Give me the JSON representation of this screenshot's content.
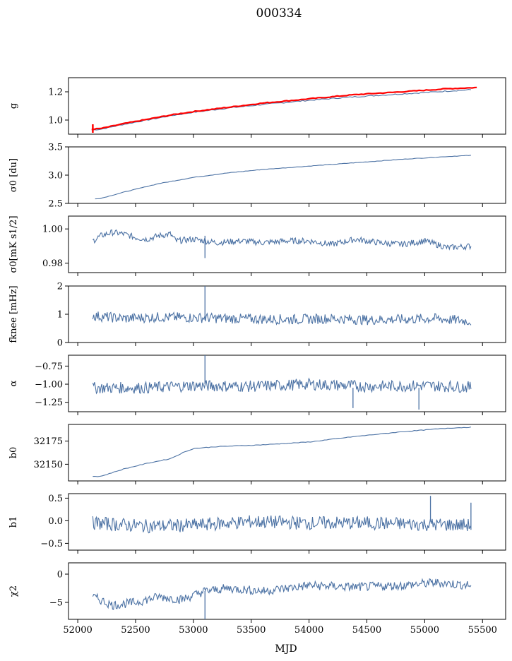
{
  "figure": {
    "title": "000334"
  },
  "chart_data": {
    "type": "line",
    "title": "000334",
    "xlabel": "MJD",
    "xlim": [
      51920,
      55700
    ],
    "xticks": [
      52000,
      52500,
      53000,
      53500,
      54000,
      54500,
      55000,
      55500
    ],
    "xtick_labels": [
      "52000",
      "52500",
      "53000",
      "53500",
      "54000",
      "54500",
      "55000",
      "55500"
    ],
    "line_color": "#4c72a4",
    "accent_color": "#ff0000",
    "panels": [
      {
        "ylabel": "g",
        "ylim": [
          0.9,
          1.3
        ],
        "yticks": [
          1.0,
          1.2
        ],
        "ytick_labels": [
          "1.0",
          "1.2"
        ],
        "series": [
          {
            "color": "#4c72a4",
            "x": [
              52120,
              52200,
              52400,
              52600,
              52800,
              53000,
              53300,
              53600,
              54000,
              54400,
              54800,
              55200,
              55400
            ],
            "y": [
              0.93,
              0.935,
              0.97,
              1.0,
              1.03,
              1.055,
              1.085,
              1.11,
              1.14,
              1.165,
              1.185,
              1.205,
              1.215
            ]
          },
          {
            "color": "#ff0000",
            "x": [
              52120,
              52200,
              52400,
              52600,
              52800,
              53000,
              53300,
              53600,
              54000,
              54400,
              54800,
              55200,
              55450
            ],
            "y": [
              0.935,
              0.94,
              0.975,
              1.005,
              1.035,
              1.06,
              1.09,
              1.12,
              1.15,
              1.18,
              1.2,
              1.222,
              1.23
            ]
          }
        ],
        "spikes": [
          {
            "x": 52130,
            "y1": 0.91,
            "y2": 0.97,
            "color": "#ff0000"
          }
        ]
      },
      {
        "ylabel": "σ0 [du]",
        "ylim": [
          2.5,
          3.5
        ],
        "yticks": [
          2.5,
          3.0,
          3.5
        ],
        "ytick_labels": [
          "2.5",
          "3.0",
          "3.5"
        ],
        "series": [
          {
            "color": "#4c72a4",
            "x": [
              52150,
              52200,
              52400,
              52700,
              53000,
              53300,
              53600,
              54000,
              54400,
              54800,
              55200,
              55400
            ],
            "y": [
              2.58,
              2.59,
              2.7,
              2.85,
              2.96,
              3.04,
              3.1,
              3.16,
              3.22,
              3.28,
              3.33,
              3.35
            ]
          }
        ]
      },
      {
        "ylabel": "σ0[mK s1/2]",
        "ylim": [
          0.9745,
          1.0075
        ],
        "yticks": [
          0.98,
          1.0
        ],
        "ytick_labels": [
          "0.98",
          "1.00"
        ],
        "series": [
          {
            "color": "#4c72a4",
            "x": [
              52130,
              52200,
              52300,
              52400,
              52500,
              52600,
              52700,
              52800,
              52850,
              53000,
              53200,
              53400,
              53600,
              53800,
              54000,
              54200,
              54400,
              54600,
              54800,
              55000,
              55200,
              55400
            ],
            "y": [
              0.993,
              0.996,
              0.998,
              0.997,
              0.995,
              0.994,
              0.996,
              0.997,
              0.993,
              0.994,
              0.992,
              0.993,
              0.992,
              0.993,
              0.993,
              0.991,
              0.994,
              0.992,
              0.991,
              0.993,
              0.989,
              0.99
            ]
          }
        ],
        "spikes": [
          {
            "x": 53100,
            "y1": 0.983,
            "y2": 0.996,
            "color": "#4c72a4"
          }
        ]
      },
      {
        "ylabel": "fknee [mHz]",
        "ylim": [
          0,
          2
        ],
        "yticks": [
          0,
          1,
          2
        ],
        "ytick_labels": [
          "0",
          "1",
          "2"
        ],
        "series": [
          {
            "color": "#4c72a4",
            "x": [
              52130,
              52400,
              52700,
              53000,
              53300,
              53600,
              53900,
              54200,
              54500,
              54800,
              55100,
              55400
            ],
            "y": [
              0.95,
              0.85,
              0.9,
              0.88,
              0.85,
              0.83,
              0.82,
              0.85,
              0.8,
              0.82,
              0.85,
              0.75
            ]
          }
        ],
        "spikes": [
          {
            "x": 53100,
            "y1": 0.8,
            "y2": 2.0,
            "color": "#4c72a4"
          }
        ]
      },
      {
        "ylabel": "α",
        "ylim": [
          -1.38,
          -0.6
        ],
        "yticks": [
          -1.25,
          -1.0,
          -0.75
        ],
        "ytick_labels": [
          "−1.25",
          "−1.00",
          "−0.75"
        ],
        "series": [
          {
            "color": "#4c72a4",
            "x": [
              52130,
              52600,
              53000,
              53500,
              54000,
              54500,
              55000,
              55400
            ],
            "y": [
              -1.05,
              -1.05,
              -1.02,
              -1.03,
              -1.0,
              -1.03,
              -1.02,
              -1.04
            ]
          }
        ],
        "spikes": [
          {
            "x": 53100,
            "y1": -1.0,
            "y2": -0.6,
            "color": "#4c72a4"
          },
          {
            "x": 54380,
            "y1": -1.33,
            "y2": -1.05,
            "color": "#4c72a4"
          },
          {
            "x": 54950,
            "y1": -1.35,
            "y2": -1.05,
            "color": "#4c72a4"
          }
        ]
      },
      {
        "ylabel": "b0",
        "ylim": [
          32132,
          32193
        ],
        "yticks": [
          32150,
          32175
        ],
        "ytick_labels": [
          "32150",
          "32175"
        ],
        "series": [
          {
            "color": "#4c72a4",
            "x": [
              52130,
              52200,
              52400,
              52600,
              52800,
              52900,
              53000,
              53200,
              53600,
              54000,
              54400,
              54800,
              55200,
              55400
            ],
            "y": [
              32137,
              32137,
              32145,
              32151,
              32156,
              32162,
              32167,
              32169,
              32171,
              32174,
              32180,
              32185,
              32189,
              32190
            ]
          }
        ]
      },
      {
        "ylabel": "b1",
        "ylim": [
          -0.65,
          0.6
        ],
        "yticks": [
          -0.5,
          0.0,
          0.5
        ],
        "ytick_labels": [
          "−0.5",
          "0.0",
          "0.5"
        ],
        "series": [
          {
            "color": "#4c72a4",
            "x": [
              52130,
              52600,
              53000,
              53500,
              54000,
              54500,
              55000,
              55400
            ],
            "y": [
              -0.05,
              -0.12,
              -0.1,
              -0.02,
              -0.05,
              -0.05,
              -0.08,
              -0.1
            ]
          }
        ],
        "spikes": [
          {
            "x": 55050,
            "y1": 0.0,
            "y2": 0.55,
            "color": "#4c72a4"
          },
          {
            "x": 55400,
            "y1": -0.2,
            "y2": 0.4,
            "color": "#4c72a4"
          }
        ]
      },
      {
        "ylabel": "χ2",
        "ylim": [
          -8,
          2
        ],
        "yticks": [
          -5,
          0
        ],
        "ytick_labels": [
          "−5",
          "0"
        ],
        "series": [
          {
            "color": "#4c72a4",
            "x": [
              52130,
              52300,
              52500,
              52700,
              52900,
              53100,
              53300,
              53600,
              54000,
              54400,
              54800,
              55100,
              55400
            ],
            "y": [
              -4,
              -5.5,
              -5,
              -4,
              -4.5,
              -3,
              -2.5,
              -3,
              -2,
              -2.3,
              -2,
              -1.5,
              -2
            ]
          }
        ],
        "spikes": [
          {
            "x": 53100,
            "y1": -8,
            "y2": -3,
            "color": "#4c72a4"
          }
        ]
      }
    ]
  }
}
